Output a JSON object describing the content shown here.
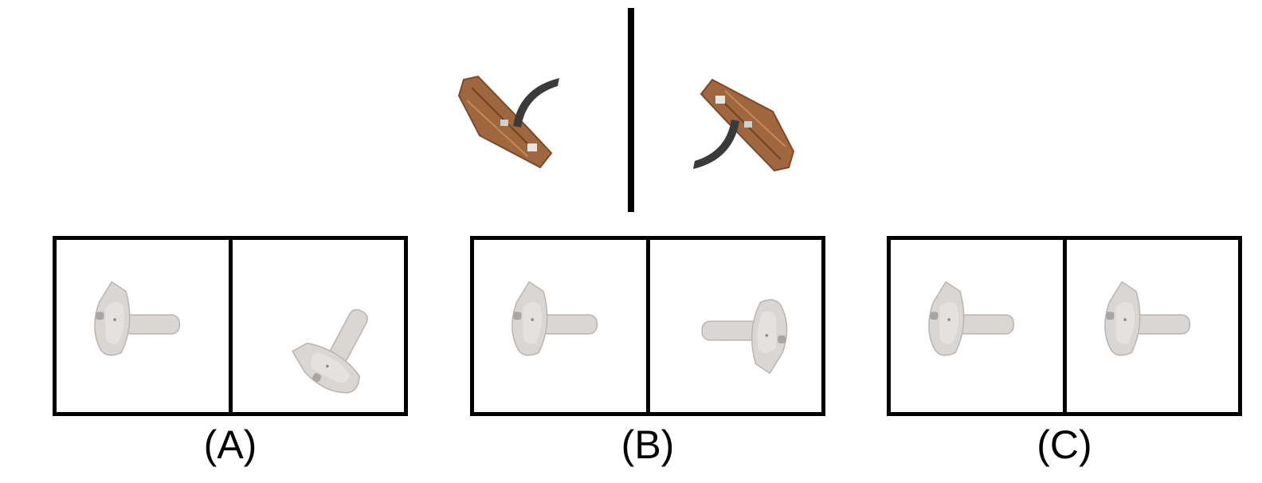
{
  "example": {
    "left_icon": "wooden-boat-icon",
    "right_icon": "wooden-boat-icon"
  },
  "options": [
    {
      "label": "(A)",
      "left_icon": "sink-icon",
      "right_icon": "sink-icon"
    },
    {
      "label": "(B)",
      "left_icon": "sink-icon",
      "right_icon": "sink-icon"
    },
    {
      "label": "(C)",
      "left_icon": "sink-icon",
      "right_icon": "sink-icon"
    }
  ],
  "colors": {
    "boat_wood": "#a0673f",
    "boat_dark": "#3a3a3a",
    "sink": "#d9d6d4",
    "sink_shade": "#b8b4b1"
  }
}
